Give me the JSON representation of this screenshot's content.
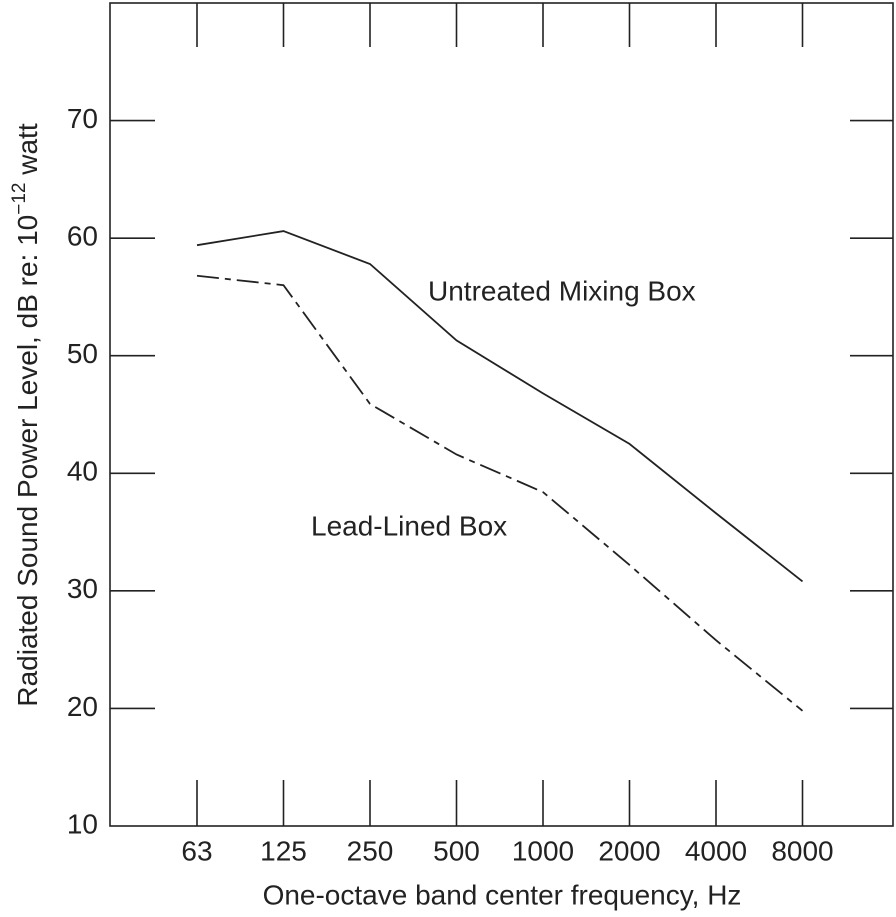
{
  "chart_data": {
    "type": "line",
    "y_label": {
      "text": "Radiated Sound Power Level, dB re: 10",
      "superscript": "−12",
      "suffix": "watt"
    },
    "x_label": "One-octave band center frequency, Hz",
    "categories": [
      "63",
      "125",
      "250",
      "500",
      "1000",
      "2000",
      "4000",
      "8000"
    ],
    "series": [
      {
        "name": "Untreated Mixing Box",
        "color": "#222222",
        "dash": "none",
        "values": [
          59.4,
          60.6,
          57.8,
          51.3,
          46.8,
          42.5,
          36.6,
          30.8
        ]
      },
      {
        "name": "Lead-Lined Box",
        "color": "#222222",
        "dash": "22 6 6 6",
        "values": [
          56.8,
          56.0,
          45.9,
          41.6,
          38.4,
          32.2,
          25.8,
          19.8
        ]
      }
    ],
    "ylim": [
      10,
      80
    ],
    "yticks": [
      10,
      20,
      30,
      40,
      50,
      60,
      70
    ],
    "grid": false
  }
}
